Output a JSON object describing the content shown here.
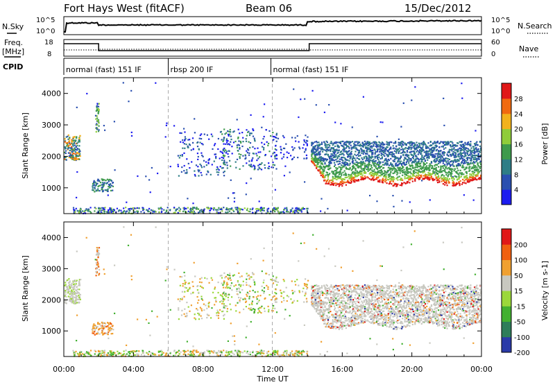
{
  "header": {
    "radar": "Fort Hays West (fitACF)",
    "beam": "Beam 06",
    "date": "15/Dec/2012"
  },
  "strips": {
    "nsky_label": "N.Sky",
    "nsearch_label": "N.Search",
    "freq_label": "Freq.",
    "freq_unit": "[MHz]",
    "nave_label": "Nave",
    "cpid_label": "CPID",
    "nsky_ticks": [
      "10^5",
      "10^0"
    ],
    "nsearch_ticks": [
      "10^5",
      "10^0"
    ],
    "freq_ticks": [
      "18",
      "8"
    ],
    "nave_ticks": [
      "60",
      "0"
    ],
    "cpid_segments": [
      {
        "label": "normal (fast) 151 IF",
        "start_hour": 0,
        "end_hour": 6
      },
      {
        "label": "rbsp 200 IF",
        "start_hour": 6,
        "end_hour": 11.9
      },
      {
        "label": "normal (fast) 151 IF",
        "start_hour": 11.9,
        "end_hour": 24
      }
    ]
  },
  "chart_data": [
    {
      "type": "heatmap",
      "parameter": "Power",
      "colorbar_label": "Power [dB]",
      "colorbar_ticks": [
        "4",
        "8",
        "12",
        "16",
        "20",
        "24",
        "28"
      ],
      "colorbar_range": [
        0,
        30
      ],
      "colors": [
        "#1c1cf0",
        "#2a4fb0",
        "#2e7d86",
        "#3e9a4c",
        "#8fcc3a",
        "#f2b21c",
        "#f06a10",
        "#e01818"
      ],
      "ylabel": "Slant Range [km]",
      "yticks": [
        "1000",
        "2000",
        "3000",
        "4000"
      ],
      "ylim": [
        180,
        4500
      ],
      "xlim": [
        0,
        24
      ]
    },
    {
      "type": "heatmap",
      "parameter": "Velocity",
      "colorbar_label": "Velocity [m s-1]",
      "colorbar_ticks": [
        "200",
        "100",
        "50",
        "15",
        "-15",
        "-50",
        "-100",
        "-200"
      ],
      "colors": [
        "#2a3aa8",
        "#2e7d5a",
        "#42b030",
        "#9bd83a",
        "#c8c8c0",
        "#f0a030",
        "#f06010",
        "#e01818"
      ],
      "ylabel": "Slant Range [km]",
      "yticks": [
        "1000",
        "2000",
        "3000",
        "4000"
      ],
      "ylim": [
        180,
        4500
      ],
      "xlim": [
        0,
        24
      ]
    }
  ],
  "xaxis": {
    "label": "Time UT",
    "ticks": [
      "00:00",
      "04:00",
      "08:00",
      "12:00",
      "16:00",
      "20:00",
      "00:00"
    ]
  }
}
